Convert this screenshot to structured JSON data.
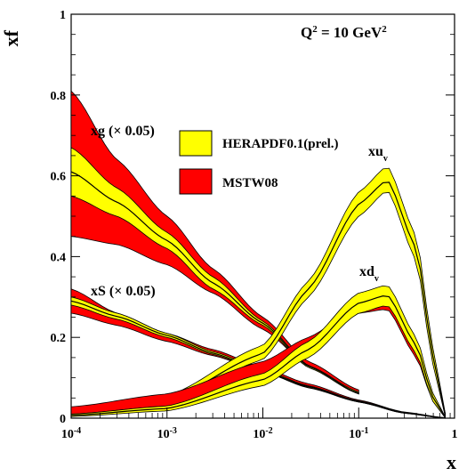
{
  "chart_data": {
    "type": "area",
    "xlabel": "x",
    "ylabel": "xf",
    "xscale": "log",
    "xlim": [
      0.0001,
      1
    ],
    "ylim": [
      0,
      1
    ],
    "x_ticks": [
      {
        "value": 0.0001,
        "base": "10",
        "exp": "-4"
      },
      {
        "value": 0.001,
        "base": "10",
        "exp": "-3"
      },
      {
        "value": 0.01,
        "base": "10",
        "exp": "-2"
      },
      {
        "value": 0.1,
        "base": "10",
        "exp": "-1"
      },
      {
        "value": 1,
        "base": "1",
        "exp": ""
      }
    ],
    "y_ticks": [
      "0",
      "0.2",
      "0.4",
      "0.6",
      "0.8",
      "1"
    ],
    "annotation_q2": {
      "prefix": "Q",
      "sup1": "2",
      "mid": " = 10 GeV",
      "sup2": "2"
    },
    "legend": [
      {
        "label": "HERAPDF0.1(prel.)",
        "color": "#ffff00"
      },
      {
        "label": "MSTW08",
        "color": "#ff0000"
      }
    ],
    "curve_labels": {
      "xg": "xg (× 0.05)",
      "xS": "xS (× 0.05)",
      "xuv_main": "xu",
      "xuv_sub": "v",
      "xdv_main": "xd",
      "xdv_sub": "v"
    },
    "series": [
      {
        "name": "xg (× 0.05)",
        "pdf": "MSTW08",
        "color": "#ff0000",
        "x": [
          0.0001,
          0.0003,
          0.001,
          0.003,
          0.01,
          0.03,
          0.1
        ],
        "upper": [
          0.81,
          0.64,
          0.5,
          0.37,
          0.25,
          0.14,
          0.07
        ],
        "lower": [
          0.45,
          0.43,
          0.38,
          0.31,
          0.22,
          0.13,
          0.06
        ]
      },
      {
        "name": "xg (× 0.05)",
        "pdf": "HERAPDF0.1(prel.)",
        "color": "#ffff00",
        "x": [
          0.0001,
          0.0003,
          0.001,
          0.003,
          0.01,
          0.03,
          0.1
        ],
        "upper": [
          0.67,
          0.57,
          0.46,
          0.35,
          0.24,
          0.13,
          0.065
        ],
        "lower": [
          0.55,
          0.5,
          0.42,
          0.32,
          0.23,
          0.125,
          0.06
        ],
        "central": [
          0.61,
          0.535,
          0.44,
          0.335,
          0.235,
          0.128,
          0.062
        ]
      },
      {
        "name": "xS (× 0.05)",
        "pdf": "MSTW08",
        "color": "#ff0000",
        "x": [
          0.0001,
          0.0003,
          0.001,
          0.003,
          0.01,
          0.03,
          0.1,
          0.3,
          0.8
        ],
        "upper": [
          0.32,
          0.26,
          0.21,
          0.17,
          0.125,
          0.085,
          0.045,
          0.015,
          0.001
        ],
        "lower": [
          0.26,
          0.23,
          0.19,
          0.155,
          0.115,
          0.075,
          0.04,
          0.012,
          0.0
        ]
      },
      {
        "name": "xS (× 0.05)",
        "pdf": "HERAPDF0.1(prel.)",
        "color": "#ffff00",
        "x": [
          0.0001,
          0.0003,
          0.001,
          0.003,
          0.01,
          0.03,
          0.1,
          0.3,
          0.8
        ],
        "upper": [
          0.3,
          0.26,
          0.21,
          0.165,
          0.12,
          0.08,
          0.043,
          0.014,
          0.001
        ],
        "lower": [
          0.28,
          0.245,
          0.2,
          0.158,
          0.115,
          0.076,
          0.04,
          0.012,
          0.0
        ],
        "central": [
          0.29,
          0.252,
          0.205,
          0.161,
          0.117,
          0.078,
          0.041,
          0.013,
          0.0
        ]
      },
      {
        "name": "xu_v",
        "pdf": "MSTW08",
        "color": "#ff0000",
        "x": [
          0.0001,
          0.001,
          0.01,
          0.03,
          0.1,
          0.2,
          0.4,
          0.6,
          0.8
        ],
        "upper": [
          0.016,
          0.05,
          0.17,
          0.32,
          0.53,
          0.6,
          0.42,
          0.15,
          0.01
        ],
        "lower": [
          0.008,
          0.038,
          0.15,
          0.3,
          0.52,
          0.585,
          0.4,
          0.14,
          0.005
        ]
      },
      {
        "name": "xu_v",
        "pdf": "HERAPDF0.1(prel.)",
        "color": "#ffff00",
        "x": [
          0.0001,
          0.001,
          0.01,
          0.03,
          0.1,
          0.2,
          0.4,
          0.6,
          0.8
        ],
        "upper": [
          0.02,
          0.055,
          0.18,
          0.34,
          0.56,
          0.625,
          0.45,
          0.17,
          0.012
        ],
        "lower": [
          0.008,
          0.035,
          0.145,
          0.3,
          0.5,
          0.565,
          0.39,
          0.13,
          0.004
        ],
        "central": [
          0.012,
          0.045,
          0.16,
          0.32,
          0.53,
          0.59,
          0.42,
          0.15,
          0.008
        ]
      },
      {
        "name": "xd_v",
        "pdf": "MSTW08",
        "color": "#ff0000",
        "x": [
          0.0001,
          0.001,
          0.01,
          0.03,
          0.1,
          0.2,
          0.4,
          0.6,
          0.8
        ],
        "upper": [
          0.028,
          0.06,
          0.14,
          0.2,
          0.28,
          0.29,
          0.17,
          0.05,
          0.002
        ],
        "lower": [
          0.01,
          0.03,
          0.08,
          0.16,
          0.26,
          0.27,
          0.15,
          0.04,
          0.001
        ]
      },
      {
        "name": "xd_v",
        "pdf": "HERAPDF0.1(prel.)",
        "color": "#ffff00",
        "x": [
          0.0001,
          0.001,
          0.01,
          0.03,
          0.1,
          0.2,
          0.4,
          0.6,
          0.8
        ],
        "upper": [
          0.01,
          0.03,
          0.11,
          0.19,
          0.31,
          0.33,
          0.2,
          0.06,
          0.003
        ],
        "lower": [
          0.004,
          0.018,
          0.08,
          0.15,
          0.26,
          0.28,
          0.16,
          0.04,
          0.001
        ],
        "central": [
          0.007,
          0.024,
          0.095,
          0.17,
          0.285,
          0.305,
          0.18,
          0.05,
          0.002
        ]
      }
    ]
  }
}
